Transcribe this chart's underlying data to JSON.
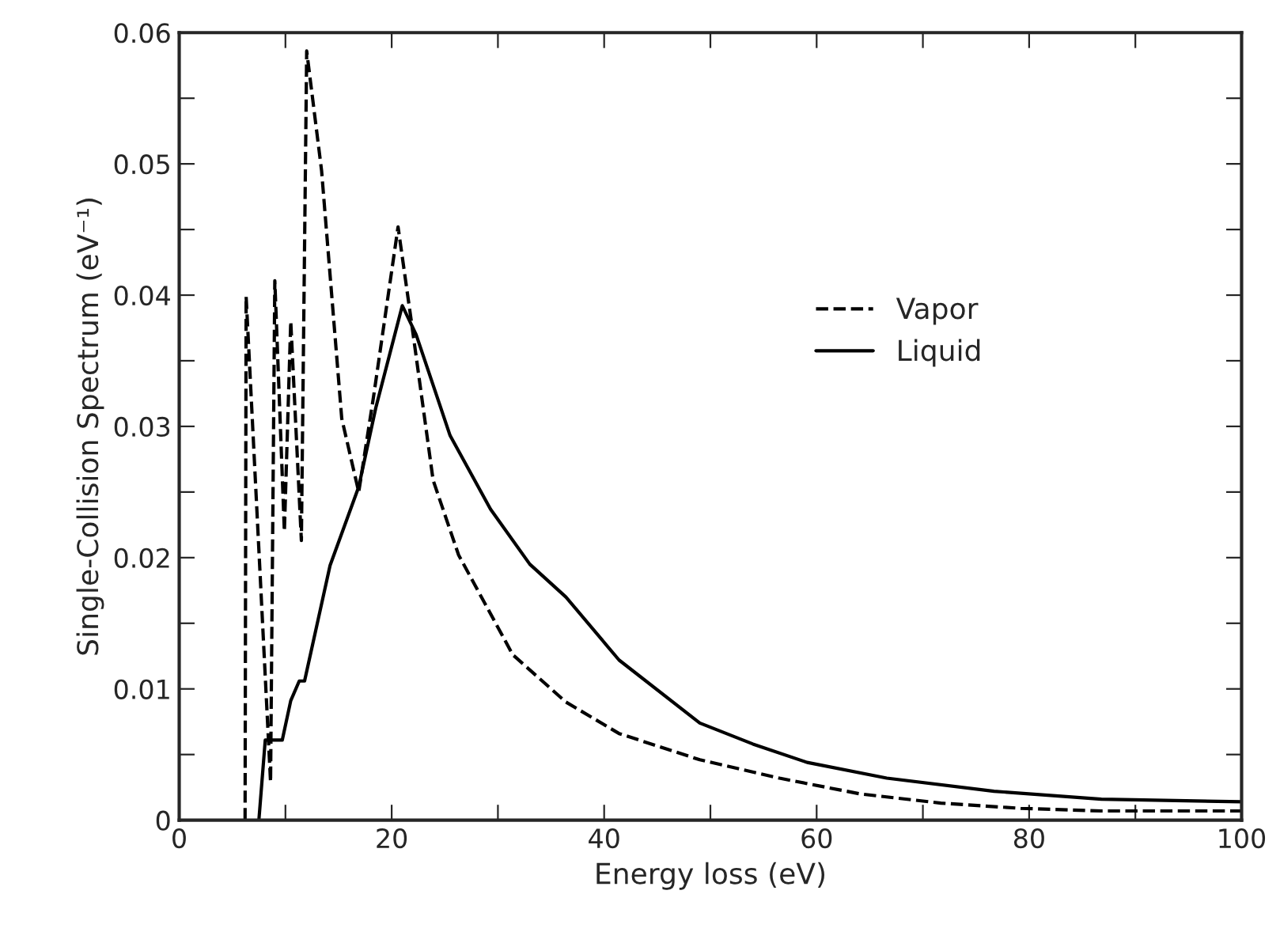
{
  "chart_data": {
    "type": "line",
    "xlabel": "Energy loss (eV)",
    "ylabel": "Single-Collision Spectrum (eV⁻¹)",
    "xlim": [
      0,
      100
    ],
    "ylim": [
      0,
      0.06
    ],
    "xticks": [
      0,
      {
        "value": 10,
        "label": null
      },
      20,
      {
        "value": 30,
        "label": null
      },
      40,
      {
        "value": 50,
        "label": null
      },
      60,
      {
        "value": 70,
        "label": null
      },
      80,
      {
        "value": 90,
        "label": null
      },
      100
    ],
    "yticks": [
      0,
      {
        "value": 0.005,
        "label": null
      },
      0.01,
      {
        "value": 0.015,
        "label": null
      },
      0.02,
      {
        "value": 0.025,
        "label": null
      },
      0.03,
      {
        "value": 0.035,
        "label": null
      },
      0.04,
      {
        "value": 0.045,
        "label": null
      },
      0.05,
      {
        "value": 0.055,
        "label": null
      },
      0.06
    ],
    "grid": false,
    "legend": "right",
    "series": [
      {
        "name": "Vapor",
        "color": "#000000",
        "line_style": "dashed",
        "x": [
          6.2,
          6.3,
          8.6,
          9.0,
          9.9,
          10.5,
          11.5,
          12.0,
          13.4,
          15.3,
          16.9,
          18.3,
          20.6,
          21.8,
          23.9,
          26.3,
          31.4,
          36.4,
          41.4,
          49.0,
          56.5,
          64.1,
          71.7,
          79.2,
          86.8,
          100
        ],
        "values": [
          0,
          0.0399,
          0.0029,
          0.0411,
          0.022,
          0.038,
          0.0213,
          0.0586,
          0.0495,
          0.0306,
          0.025,
          0.0323,
          0.0452,
          0.0383,
          0.0259,
          0.0202,
          0.0126,
          0.009,
          0.0066,
          0.0046,
          0.0032,
          0.002,
          0.0013,
          0.0009,
          0.0007,
          0.0007
        ]
      },
      {
        "name": "Liquid",
        "color": "#000000",
        "line_style": "solid",
        "x": [
          7.5,
          8.1,
          9.7,
          10.5,
          11.3,
          11.8,
          14.2,
          16.9,
          18.5,
          21.0,
          22.3,
          25.5,
          29.3,
          33.0,
          36.4,
          41.4,
          49.0,
          54.0,
          59.1,
          66.6,
          76.7,
          86.8,
          100
        ],
        "values": [
          0,
          0.0061,
          0.0061,
          0.0091,
          0.0106,
          0.0106,
          0.0194,
          0.0254,
          0.0314,
          0.0392,
          0.037,
          0.0293,
          0.0237,
          0.0195,
          0.017,
          0.0122,
          0.0074,
          0.0058,
          0.0044,
          0.0032,
          0.0022,
          0.0016,
          0.0014
        ]
      }
    ]
  }
}
